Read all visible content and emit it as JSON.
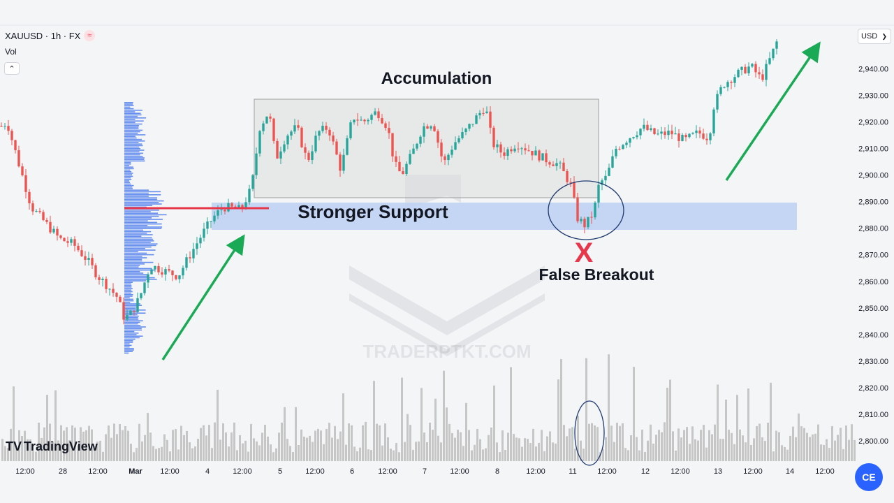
{
  "header": {
    "symbol": "XAUUSD · 1h · FX",
    "indicator_label": "Vol",
    "currency": "USD",
    "currency_arrow": "❯",
    "collapse_arrow": "⌃",
    "flag_icon_text": "≈"
  },
  "brand": {
    "name": "TradingView",
    "logo": "TV"
  },
  "watermark": "TRADERPTKT.COM",
  "fab_label": "CE",
  "annotations": {
    "accumulation": "Accumulation",
    "stronger_support": "Stronger Support",
    "false_breakout": "False Breakout",
    "x_mark": "X"
  },
  "colors": {
    "bull": "#26a69a",
    "bear": "#ef5350",
    "support_zone": "#bcd0f5",
    "accumulation_box": "#dcdcdc",
    "arrow": "#1aaa55",
    "volume": "#c6c6c6",
    "poc_line": "#e8364a",
    "volume_profile": "#4b7bec"
  },
  "chart_data": {
    "type": "candlestick",
    "symbol": "XAUUSD",
    "timeframe": "1h",
    "price_axis": {
      "ticks": [
        2800,
        2810,
        2820,
        2830,
        2840,
        2850,
        2860,
        2870,
        2880,
        2890,
        2900,
        2910,
        2920,
        2930,
        2940
      ],
      "tick_labels": [
        "2,800.00",
        "2,810.00",
        "2,820.00",
        "2,830.00",
        "2,840.00",
        "2,850.00",
        "2,860.00",
        "2,870.00",
        "2,880.00",
        "2,890.00",
        "2,900.00",
        "2,910.00",
        "2,920.00",
        "2,930.00",
        "2,940.00"
      ],
      "range": [
        2796,
        2952
      ]
    },
    "time_axis": {
      "labels": [
        "12:00",
        "28",
        "12:00",
        "Mar",
        "12:00",
        "4",
        "12:00",
        "5",
        "12:00",
        "6",
        "12:00",
        "7",
        "12:00",
        "8",
        "12:00",
        "11",
        "12:00",
        "12",
        "12:00",
        "13",
        "12:00",
        "14",
        "12:00"
      ],
      "bold": [
        "Mar"
      ]
    },
    "price_path": [
      [
        0,
        2918
      ],
      [
        10,
        2920
      ],
      [
        25,
        2906
      ],
      [
        45,
        2888
      ],
      [
        65,
        2882
      ],
      [
        85,
        2876
      ],
      [
        105,
        2874
      ],
      [
        125,
        2868
      ],
      [
        140,
        2862
      ],
      [
        155,
        2858
      ],
      [
        168,
        2854
      ],
      [
        178,
        2846
      ],
      [
        188,
        2848
      ],
      [
        200,
        2854
      ],
      [
        215,
        2866
      ],
      [
        235,
        2864
      ],
      [
        255,
        2862
      ],
      [
        272,
        2870
      ],
      [
        290,
        2878
      ],
      [
        305,
        2884
      ],
      [
        320,
        2888
      ],
      [
        345,
        2887
      ],
      [
        360,
        2895
      ],
      [
        372,
        2918
      ],
      [
        385,
        2924
      ],
      [
        395,
        2906
      ],
      [
        410,
        2915
      ],
      [
        425,
        2918
      ],
      [
        440,
        2905
      ],
      [
        455,
        2916
      ],
      [
        470,
        2918
      ],
      [
        488,
        2902
      ],
      [
        505,
        2922
      ],
      [
        520,
        2920
      ],
      [
        540,
        2924
      ],
      [
        555,
        2918
      ],
      [
        565,
        2904
      ],
      [
        575,
        2900
      ],
      [
        590,
        2908
      ],
      [
        605,
        2918
      ],
      [
        620,
        2920
      ],
      [
        635,
        2904
      ],
      [
        650,
        2912
      ],
      [
        665,
        2916
      ],
      [
        680,
        2921
      ],
      [
        695,
        2926
      ],
      [
        705,
        2912
      ],
      [
        720,
        2908
      ],
      [
        740,
        2912
      ],
      [
        760,
        2909
      ],
      [
        780,
        2906
      ],
      [
        800,
        2904
      ],
      [
        818,
        2896
      ],
      [
        826,
        2884
      ],
      [
        838,
        2881
      ],
      [
        850,
        2886
      ],
      [
        858,
        2897
      ],
      [
        868,
        2899
      ],
      [
        882,
        2910
      ],
      [
        900,
        2914
      ],
      [
        920,
        2918
      ],
      [
        940,
        2915
      ],
      [
        960,
        2916
      ],
      [
        980,
        2913
      ],
      [
        1000,
        2916
      ],
      [
        1015,
        2914
      ],
      [
        1022,
        2926
      ],
      [
        1035,
        2934
      ],
      [
        1055,
        2938
      ],
      [
        1075,
        2941
      ],
      [
        1090,
        2936
      ],
      [
        1103,
        2944
      ],
      [
        1112,
        2950
      ]
    ],
    "volume_range": [
      0,
      100
    ],
    "regions": {
      "accumulation_range": [
        2891,
        2929
      ],
      "support_zone": [
        2879,
        2889
      ],
      "poc_price": 2887,
      "false_breakout_low": 2880
    }
  }
}
